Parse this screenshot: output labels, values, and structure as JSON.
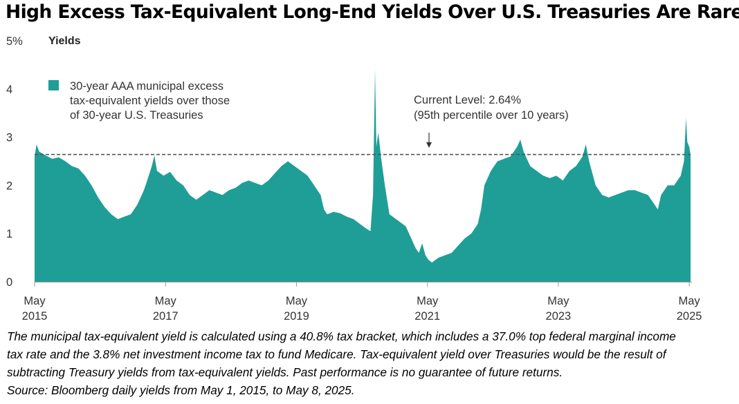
{
  "title": "High Excess Tax-Equivalent Long-End Yields Over U.S. Treasuries Are Rare",
  "footnote": {
    "line1": "The municipal tax-equivalent yield is calculated using a 40.8% tax bracket, which includes a 37.0% top federal marginal income",
    "line2": "tax rate and the 3.8% net investment income tax to fund Medicare. Tax-equivalent yield over Treasuries would be the result of",
    "line3": "subtracting Treasury yields from tax-equivalent yields. Past performance is no guarantee of future returns.",
    "line4": "Source: Bloomberg daily yields from May 1, 2015, to May 8, 2025."
  },
  "colors": {
    "area": "#1f9e97",
    "reference_line": "#555555",
    "axis": "#999999",
    "text": "#333333"
  },
  "chart_data": {
    "type": "area",
    "ylabel": "Yields",
    "ylim": [
      0,
      5
    ],
    "y_ticks": [
      "0",
      "1",
      "2",
      "3",
      "4",
      "5%"
    ],
    "x_ticks": [
      {
        "line1": "May",
        "line2": "2015",
        "x": 2015.33
      },
      {
        "line1": "May",
        "line2": "2017",
        "x": 2017.33
      },
      {
        "line1": "May",
        "line2": "2019",
        "x": 2019.33
      },
      {
        "line1": "May",
        "line2": "2021",
        "x": 2021.33
      },
      {
        "line1": "May",
        "line2": "2023",
        "x": 2023.33
      },
      {
        "line1": "May",
        "line2": "2025",
        "x": 2025.33
      }
    ],
    "xlim": [
      2015.33,
      2025.35
    ],
    "legend": {
      "position": "top-left",
      "lines": [
        "30-year AAA municipal excess",
        "tax-equivalent yields over those",
        "of 30-year U.S. Treasuries"
      ]
    },
    "reference_line": {
      "value": 2.64
    },
    "annotation": {
      "line1": "Current Level: 2.64%",
      "line2": "(95th percentile over 10 years)"
    },
    "series": [
      {
        "name": "30-year AAA municipal excess tax-equivalent yields over those of 30-year U.S. Treasuries",
        "points": [
          [
            2015.33,
            2.6
          ],
          [
            2015.36,
            2.85
          ],
          [
            2015.4,
            2.7
          ],
          [
            2015.5,
            2.62
          ],
          [
            2015.6,
            2.55
          ],
          [
            2015.7,
            2.58
          ],
          [
            2015.8,
            2.5
          ],
          [
            2015.9,
            2.4
          ],
          [
            2016.0,
            2.35
          ],
          [
            2016.1,
            2.2
          ],
          [
            2016.2,
            2.0
          ],
          [
            2016.3,
            1.75
          ],
          [
            2016.4,
            1.55
          ],
          [
            2016.5,
            1.4
          ],
          [
            2016.6,
            1.3
          ],
          [
            2016.7,
            1.35
          ],
          [
            2016.8,
            1.4
          ],
          [
            2016.9,
            1.6
          ],
          [
            2017.0,
            1.9
          ],
          [
            2017.05,
            2.1
          ],
          [
            2017.12,
            2.4
          ],
          [
            2017.16,
            2.62
          ],
          [
            2017.2,
            2.3
          ],
          [
            2017.3,
            2.2
          ],
          [
            2017.4,
            2.28
          ],
          [
            2017.5,
            2.1
          ],
          [
            2017.6,
            2.0
          ],
          [
            2017.7,
            1.8
          ],
          [
            2017.8,
            1.7
          ],
          [
            2017.9,
            1.8
          ],
          [
            2018.0,
            1.9
          ],
          [
            2018.1,
            1.85
          ],
          [
            2018.2,
            1.8
          ],
          [
            2018.3,
            1.9
          ],
          [
            2018.4,
            1.95
          ],
          [
            2018.5,
            2.05
          ],
          [
            2018.6,
            2.1
          ],
          [
            2018.7,
            2.05
          ],
          [
            2018.8,
            2.0
          ],
          [
            2018.9,
            2.1
          ],
          [
            2019.0,
            2.25
          ],
          [
            2019.1,
            2.4
          ],
          [
            2019.2,
            2.5
          ],
          [
            2019.3,
            2.4
          ],
          [
            2019.4,
            2.3
          ],
          [
            2019.5,
            2.2
          ],
          [
            2019.6,
            2.0
          ],
          [
            2019.7,
            1.8
          ],
          [
            2019.75,
            1.5
          ],
          [
            2019.8,
            1.4
          ],
          [
            2019.9,
            1.45
          ],
          [
            2020.0,
            1.42
          ],
          [
            2020.1,
            1.35
          ],
          [
            2020.2,
            1.3
          ],
          [
            2020.3,
            1.2
          ],
          [
            2020.4,
            1.1
          ],
          [
            2020.46,
            1.05
          ],
          [
            2020.5,
            1.8
          ],
          [
            2020.53,
            4.4
          ],
          [
            2020.55,
            2.8
          ],
          [
            2020.58,
            3.1
          ],
          [
            2020.62,
            2.6
          ],
          [
            2020.68,
            2.0
          ],
          [
            2020.75,
            1.4
          ],
          [
            2020.85,
            1.3
          ],
          [
            2020.95,
            1.2
          ],
          [
            2021.0,
            1.15
          ],
          [
            2021.05,
            1.0
          ],
          [
            2021.1,
            0.85
          ],
          [
            2021.15,
            0.7
          ],
          [
            2021.2,
            0.6
          ],
          [
            2021.25,
            0.8
          ],
          [
            2021.3,
            0.55
          ],
          [
            2021.35,
            0.45
          ],
          [
            2021.4,
            0.4
          ],
          [
            2021.5,
            0.5
          ],
          [
            2021.6,
            0.55
          ],
          [
            2021.7,
            0.6
          ],
          [
            2021.8,
            0.75
          ],
          [
            2021.9,
            0.9
          ],
          [
            2022.0,
            1.0
          ],
          [
            2022.1,
            1.2
          ],
          [
            2022.15,
            1.5
          ],
          [
            2022.2,
            2.0
          ],
          [
            2022.3,
            2.3
          ],
          [
            2022.4,
            2.5
          ],
          [
            2022.5,
            2.55
          ],
          [
            2022.6,
            2.6
          ],
          [
            2022.7,
            2.8
          ],
          [
            2022.75,
            2.95
          ],
          [
            2022.8,
            2.7
          ],
          [
            2022.9,
            2.4
          ],
          [
            2023.0,
            2.3
          ],
          [
            2023.1,
            2.2
          ],
          [
            2023.2,
            2.15
          ],
          [
            2023.3,
            2.2
          ],
          [
            2023.4,
            2.1
          ],
          [
            2023.5,
            2.3
          ],
          [
            2023.6,
            2.4
          ],
          [
            2023.7,
            2.6
          ],
          [
            2023.75,
            2.85
          ],
          [
            2023.8,
            2.5
          ],
          [
            2023.9,
            2.0
          ],
          [
            2024.0,
            1.8
          ],
          [
            2024.1,
            1.75
          ],
          [
            2024.2,
            1.8
          ],
          [
            2024.3,
            1.85
          ],
          [
            2024.4,
            1.9
          ],
          [
            2024.5,
            1.9
          ],
          [
            2024.6,
            1.85
          ],
          [
            2024.7,
            1.8
          ],
          [
            2024.8,
            1.6
          ],
          [
            2024.85,
            1.5
          ],
          [
            2024.9,
            1.8
          ],
          [
            2025.0,
            2.0
          ],
          [
            2025.1,
            2.0
          ],
          [
            2025.2,
            2.2
          ],
          [
            2025.25,
            2.5
          ],
          [
            2025.28,
            3.4
          ],
          [
            2025.3,
            2.9
          ],
          [
            2025.33,
            2.8
          ],
          [
            2025.35,
            2.64
          ]
        ]
      }
    ]
  }
}
